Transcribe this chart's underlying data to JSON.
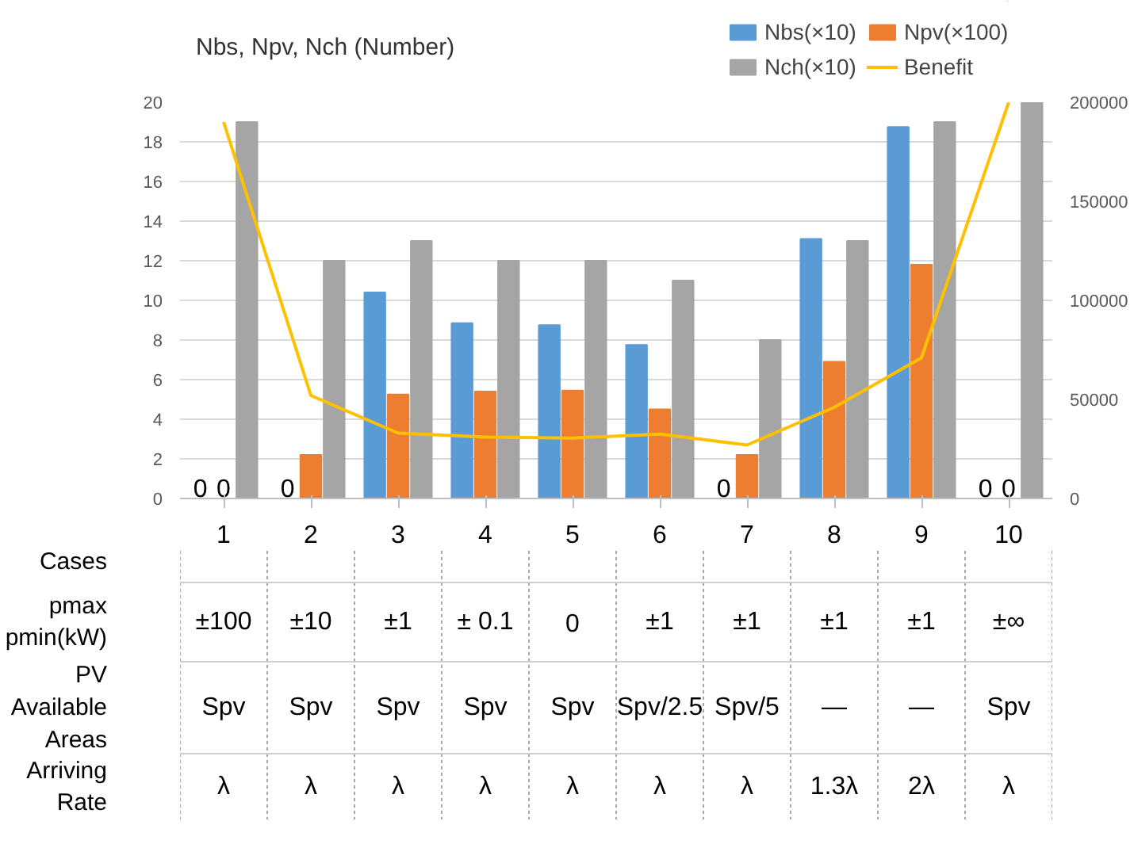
{
  "chart_data": {
    "type": "bar",
    "ylabel": "Nbs, Npv, Nch (Number)",
    "xlabel": "Cases",
    "categories": [
      "1",
      "2",
      "3",
      "4",
      "5",
      "6",
      "7",
      "8",
      "9",
      "10"
    ],
    "series": [
      {
        "name": "Nbs(×10)",
        "color": "#5b9bd5",
        "values": [
          0,
          0,
          10.4,
          8.85,
          8.75,
          7.75,
          0,
          13.1,
          18.75,
          0
        ],
        "value_labels": [
          "0",
          "0",
          null,
          null,
          null,
          null,
          "0",
          null,
          null,
          "0"
        ]
      },
      {
        "name": "Npv(×100)",
        "color": "#ed7d31",
        "values": [
          0,
          2.2,
          5.25,
          5.4,
          5.45,
          4.5,
          2.2,
          6.9,
          11.8,
          0
        ],
        "value_labels": [
          "0",
          null,
          null,
          null,
          null,
          null,
          null,
          null,
          null,
          "0"
        ]
      },
      {
        "name": "Nch(×10)",
        "color": "#a5a5a5",
        "values": [
          19,
          12,
          13,
          12,
          12,
          11,
          8,
          13,
          19,
          20
        ]
      },
      {
        "name": "Benefit",
        "type": "line",
        "axis": "y2",
        "color": "#ffc000",
        "values": [
          190000,
          52000,
          33000,
          31000,
          30500,
          32500,
          27000,
          46000,
          71000,
          200000
        ]
      }
    ],
    "ylim": [
      0,
      20
    ],
    "yticks": [
      0,
      2,
      4,
      6,
      8,
      10,
      12,
      14,
      16,
      18,
      20
    ],
    "y2lim": [
      0,
      200000
    ],
    "y2ticks": [
      0,
      50000,
      100000,
      150000,
      200000
    ],
    "grid": "y",
    "legend": "top",
    "annotations": [
      "pmax\npmin(kW)",
      "±100",
      "±10",
      "±1",
      "± 0.1",
      "0",
      "±1",
      "±1",
      "±1",
      "±1",
      "±∞",
      "PV\nAvailable\nAreas",
      "Spv",
      "Spv",
      "Spv",
      "Spv",
      "Spv",
      "Spv/2.5",
      "Spv/5",
      "—",
      "—",
      "Spv",
      "Arriving\nRate",
      "λ",
      "λ",
      "λ",
      "λ",
      "λ",
      "λ",
      "λ",
      "1.3λ",
      "2λ",
      "λ"
    ]
  }
}
